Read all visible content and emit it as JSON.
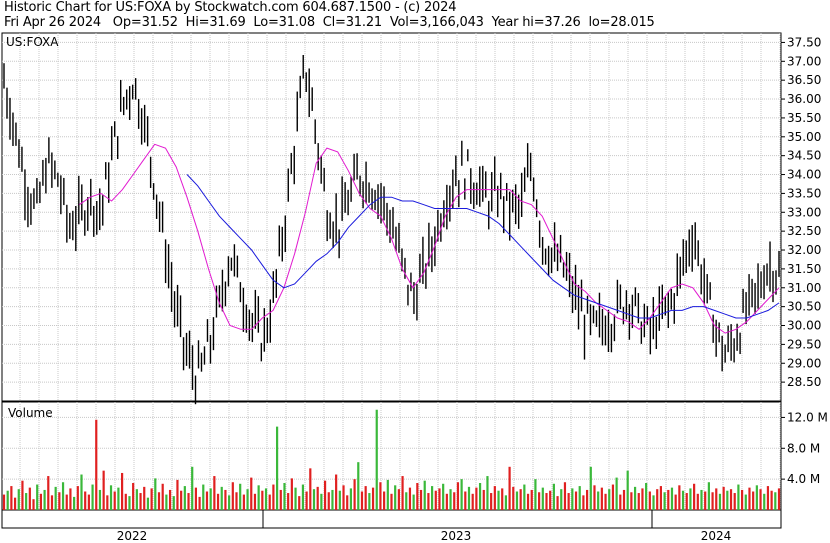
{
  "header": {
    "line1": "Historic Chart for US:FOXA by Stockwatch.com 604.687.1500 - (c) 2024",
    "line2": "Fri Apr 26 2024   Op=31.52  Hi=31.69  Lo=31.08  Cl=31.21  Vol=3,166,043  Year hi=37.26  lo=28.015"
  },
  "chart_data": {
    "type": "line",
    "symbol_label": "US:FOXA",
    "price_axis": {
      "ticks": [
        "37.50",
        "37.00",
        "36.50",
        "36.00",
        "35.50",
        "35.00",
        "34.50",
        "34.00",
        "33.50",
        "33.00",
        "32.50",
        "32.00",
        "31.50",
        "31.00",
        "30.50",
        "30.00",
        "29.50",
        "29.00",
        "28.50"
      ],
      "ylim": [
        28.0,
        37.75
      ]
    },
    "volume_panel": {
      "label": "Volume",
      "ticks": [
        "12.0 M",
        "8.0 M",
        "4.0 M"
      ],
      "ylim": [
        0,
        14
      ]
    },
    "x_axis": {
      "labels": [
        "2022",
        "2023",
        "2024"
      ]
    },
    "series": [
      {
        "key": "close",
        "color": "#000000",
        "values": [
          36.5,
          35.2,
          33.8,
          33.0,
          34.3,
          33.9,
          32.6,
          32.9,
          33.4,
          33.0,
          34.5,
          35.8,
          36.5,
          35.4,
          33.8,
          32.0,
          30.3,
          29.2,
          28.6,
          29.4,
          30.5,
          31.9,
          31.0,
          30.1,
          29.6,
          30.6,
          32.6,
          34.8,
          36.9,
          35.1,
          33.1,
          32.6,
          33.3,
          34.0,
          33.8,
          33.4,
          32.7,
          31.6,
          30.7,
          31.4,
          32.3,
          33.4,
          34.0,
          34.1,
          33.7,
          33.3,
          33.5,
          33.1,
          33.1,
          34.3,
          32.3,
          31.8,
          31.5,
          30.8,
          30.1,
          29.9,
          30.1,
          30.4,
          30.8,
          30.2,
          29.8,
          30.2,
          30.6,
          31.6,
          32.5,
          31.2,
          30.0,
          29.2,
          29.7,
          30.4,
          30.9,
          31.6,
          31.4
        ]
      },
      {
        "key": "ma_short",
        "color": "#e11ad0",
        "values": [
          null,
          null,
          null,
          null,
          null,
          null,
          null,
          33.2,
          33.4,
          33.5,
          33.3,
          33.6,
          34.0,
          34.4,
          34.8,
          34.7,
          34.2,
          33.4,
          32.5,
          31.5,
          30.6,
          30.0,
          29.9,
          29.9,
          30.2,
          30.4,
          31.0,
          31.9,
          33.0,
          34.3,
          34.7,
          34.6,
          34.1,
          33.5,
          33.1,
          32.9,
          32.3,
          31.5,
          31.0,
          31.4,
          32.1,
          32.9,
          33.4,
          33.6,
          33.6,
          33.6,
          33.6,
          33.6,
          33.3,
          33.2,
          32.9,
          32.3,
          31.7,
          31.1,
          30.9,
          30.6,
          30.4,
          30.2,
          30.1,
          29.9,
          30.2,
          30.6,
          31.0,
          31.1,
          31.0,
          30.6,
          30.0,
          29.8,
          29.9,
          30.1,
          30.4,
          30.7,
          31.0
        ]
      },
      {
        "key": "ma_long",
        "color": "#1a1adc",
        "values": [
          null,
          null,
          null,
          null,
          null,
          null,
          null,
          null,
          null,
          null,
          null,
          null,
          null,
          null,
          null,
          null,
          null,
          34.0,
          33.7,
          33.3,
          32.9,
          32.6,
          32.3,
          32.0,
          31.6,
          31.2,
          31.0,
          31.1,
          31.4,
          31.7,
          31.9,
          32.2,
          32.6,
          32.9,
          33.2,
          33.4,
          33.4,
          33.3,
          33.3,
          33.2,
          33.1,
          33.1,
          33.1,
          33.1,
          33.0,
          32.9,
          32.7,
          32.4,
          32.1,
          31.8,
          31.5,
          31.2,
          31.0,
          30.8,
          30.7,
          30.6,
          30.5,
          30.4,
          30.3,
          30.2,
          30.2,
          30.3,
          30.4,
          30.4,
          30.5,
          30.5,
          30.4,
          30.3,
          30.2,
          30.2,
          30.3,
          30.4,
          30.6
        ]
      },
      {
        "key": "volume",
        "color_up": "#3ab83a",
        "color_down": "#e02020",
        "values": [
          2.0,
          2.5,
          3.1,
          1.6,
          2.7,
          3.8,
          2.2,
          2.9,
          1.4,
          3.3,
          2.1,
          2.6,
          4.4,
          1.9,
          3.0,
          2.3,
          3.6,
          2.0,
          2.8,
          1.7,
          3.1,
          4.6,
          2.4,
          2.0,
          3.3,
          11.7,
          2.6,
          5.1,
          1.9,
          3.2,
          2.4,
          2.9,
          4.8,
          2.1,
          1.8,
          3.5,
          2.7,
          2.2,
          3.0,
          1.6,
          2.8,
          4.1,
          2.3,
          3.4,
          2.0,
          2.6,
          1.8,
          3.9,
          2.5,
          3.1,
          2.2,
          5.6,
          2.9,
          1.7,
          3.3,
          2.4,
          2.8,
          4.4,
          2.1,
          3.0,
          2.6,
          1.9,
          3.6,
          2.3,
          3.4,
          2.0,
          2.7,
          4.2,
          2.1,
          3.2,
          2.5,
          2.8,
          2.0,
          3.3,
          10.8,
          2.6,
          3.5,
          2.2,
          4.1,
          2.9,
          1.8,
          3.3,
          2.4,
          5.4,
          2.7,
          3.0,
          2.1,
          3.8,
          2.3,
          2.6,
          4.6,
          2.5,
          3.2,
          1.9,
          2.8,
          4.0,
          6.2,
          2.4,
          3.1,
          2.2,
          2.9,
          13.0,
          3.6,
          2.4,
          3.9,
          2.1,
          3.2,
          2.7,
          4.4,
          2.3,
          2.9,
          2.0,
          3.5,
          2.6,
          3.8,
          2.2,
          3.1,
          2.5,
          2.8,
          3.4,
          2.1,
          2.7,
          2.3,
          3.6,
          4.0,
          2.4,
          3.0,
          2.1,
          2.9,
          3.5,
          2.6,
          4.4,
          2.2,
          3.1,
          2.5,
          2.8,
          1.9,
          5.6,
          3.0,
          2.4,
          2.7,
          3.3,
          2.1,
          2.6,
          4.0,
          2.3,
          2.9,
          2.2,
          2.5,
          3.4,
          1.8,
          2.7,
          3.6,
          2.2,
          2.8,
          2.4,
          3.1,
          1.9,
          2.6,
          5.6,
          3.2,
          2.4,
          2.9,
          2.1,
          2.7,
          3.3,
          4.2,
          2.0,
          2.6,
          5.1,
          2.3,
          3.0,
          2.2,
          2.8,
          3.5,
          2.4,
          1.9,
          2.7,
          3.1,
          2.3,
          2.6,
          2.9,
          2.0,
          3.2,
          2.5,
          2.2,
          2.8,
          3.4,
          2.1,
          2.6,
          2.4,
          3.6,
          2.3,
          2.8,
          2.1,
          3.0,
          2.5,
          2.7,
          2.2,
          3.3,
          2.6,
          2.0,
          2.9,
          2.4,
          3.2,
          2.7,
          2.1,
          3.1,
          2.5,
          2.3,
          2.8
        ]
      }
    ],
    "grid": true
  }
}
